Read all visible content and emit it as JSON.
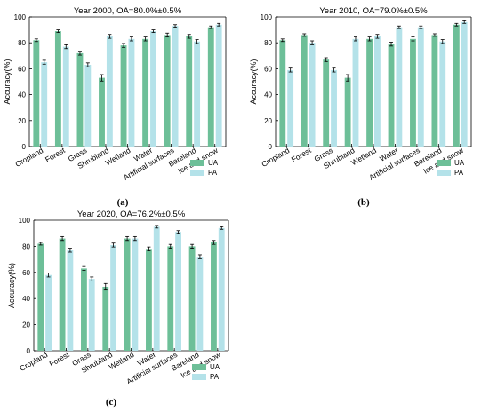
{
  "figure": {
    "colors": {
      "ua": "#6dbf98",
      "pa": "#b4e2e9",
      "axis": "#000000",
      "errorbar": "#000000"
    },
    "legend_labels": [
      "UA",
      "PA"
    ]
  },
  "chart_data": [
    {
      "type": "bar",
      "title": "Year 2000, OA=80.0%±0.5%",
      "caption": "(a)",
      "ylabel": "Accuracy(%)",
      "xlabel": "",
      "ylim": [
        0,
        100
      ],
      "yticks": [
        0,
        20,
        40,
        60,
        80,
        100
      ],
      "grid": false,
      "legend": "bottom-right outside",
      "categories": [
        "Cropland",
        "Forest",
        "Grass",
        "Shrubland",
        "Wetland",
        "Water",
        "Artificial surfaces",
        "Bareland",
        "Ice and snow"
      ],
      "series": [
        {
          "name": "UA",
          "values": [
            82,
            89,
            72,
            53,
            78,
            83,
            86,
            85,
            92
          ],
          "errors": [
            1,
            1,
            1.5,
            2.5,
            1.5,
            1.5,
            1.5,
            1.5,
            1
          ]
        },
        {
          "name": "PA",
          "values": [
            65,
            77,
            63,
            85,
            83,
            89,
            93,
            81,
            94
          ],
          "errors": [
            1.5,
            1.5,
            1.5,
            1.5,
            1.5,
            1,
            1,
            1.5,
            1
          ]
        }
      ]
    },
    {
      "type": "bar",
      "title": "Year 2010, OA=79.0%±0.5%",
      "caption": "(b)",
      "ylabel": "Accuracy(%)",
      "xlabel": "",
      "ylim": [
        0,
        100
      ],
      "yticks": [
        0,
        20,
        40,
        60,
        80,
        100
      ],
      "grid": false,
      "legend": "bottom-right outside",
      "categories": [
        "Cropland",
        "Forest",
        "Grass",
        "Shrubland",
        "Wetland",
        "Water",
        "Artificial surfaces",
        "Bareland",
        "Ice and snow"
      ],
      "series": [
        {
          "name": "UA",
          "values": [
            82,
            86,
            67,
            53,
            83,
            79,
            83,
            86,
            94
          ],
          "errors": [
            1,
            1,
            1.5,
            2.5,
            1.5,
            1.5,
            1.5,
            1,
            1
          ]
        },
        {
          "name": "PA",
          "values": [
            59,
            80,
            59,
            83,
            85,
            92,
            92,
            81,
            96
          ],
          "errors": [
            1.5,
            1.5,
            1.5,
            1.5,
            1.5,
            1,
            1,
            1.5,
            1
          ]
        }
      ]
    },
    {
      "type": "bar",
      "title": "Year 2020, OA=76.2%±0.5%",
      "caption": "(c)",
      "ylabel": "Accuracy(%)",
      "xlabel": "",
      "ylim": [
        0,
        100
      ],
      "yticks": [
        0,
        20,
        40,
        60,
        80,
        100
      ],
      "grid": false,
      "legend": "bottom-right outside",
      "categories": [
        "Cropland",
        "Forest",
        "Grass",
        "Shrubland",
        "Wetland",
        "Water",
        "Artificial surfaces",
        "Bareland",
        "Ice and snow"
      ],
      "series": [
        {
          "name": "UA",
          "values": [
            82,
            86,
            63,
            49,
            86,
            78,
            80,
            80,
            83
          ],
          "errors": [
            1,
            1.5,
            1.5,
            2.5,
            1.5,
            1.5,
            1.5,
            1.5,
            1.5
          ]
        },
        {
          "name": "PA",
          "values": [
            58,
            77,
            55,
            81,
            86,
            95,
            91,
            72,
            94
          ],
          "errors": [
            1.5,
            1.5,
            1.5,
            1.5,
            1.5,
            1,
            1,
            1.5,
            1
          ]
        }
      ]
    }
  ]
}
